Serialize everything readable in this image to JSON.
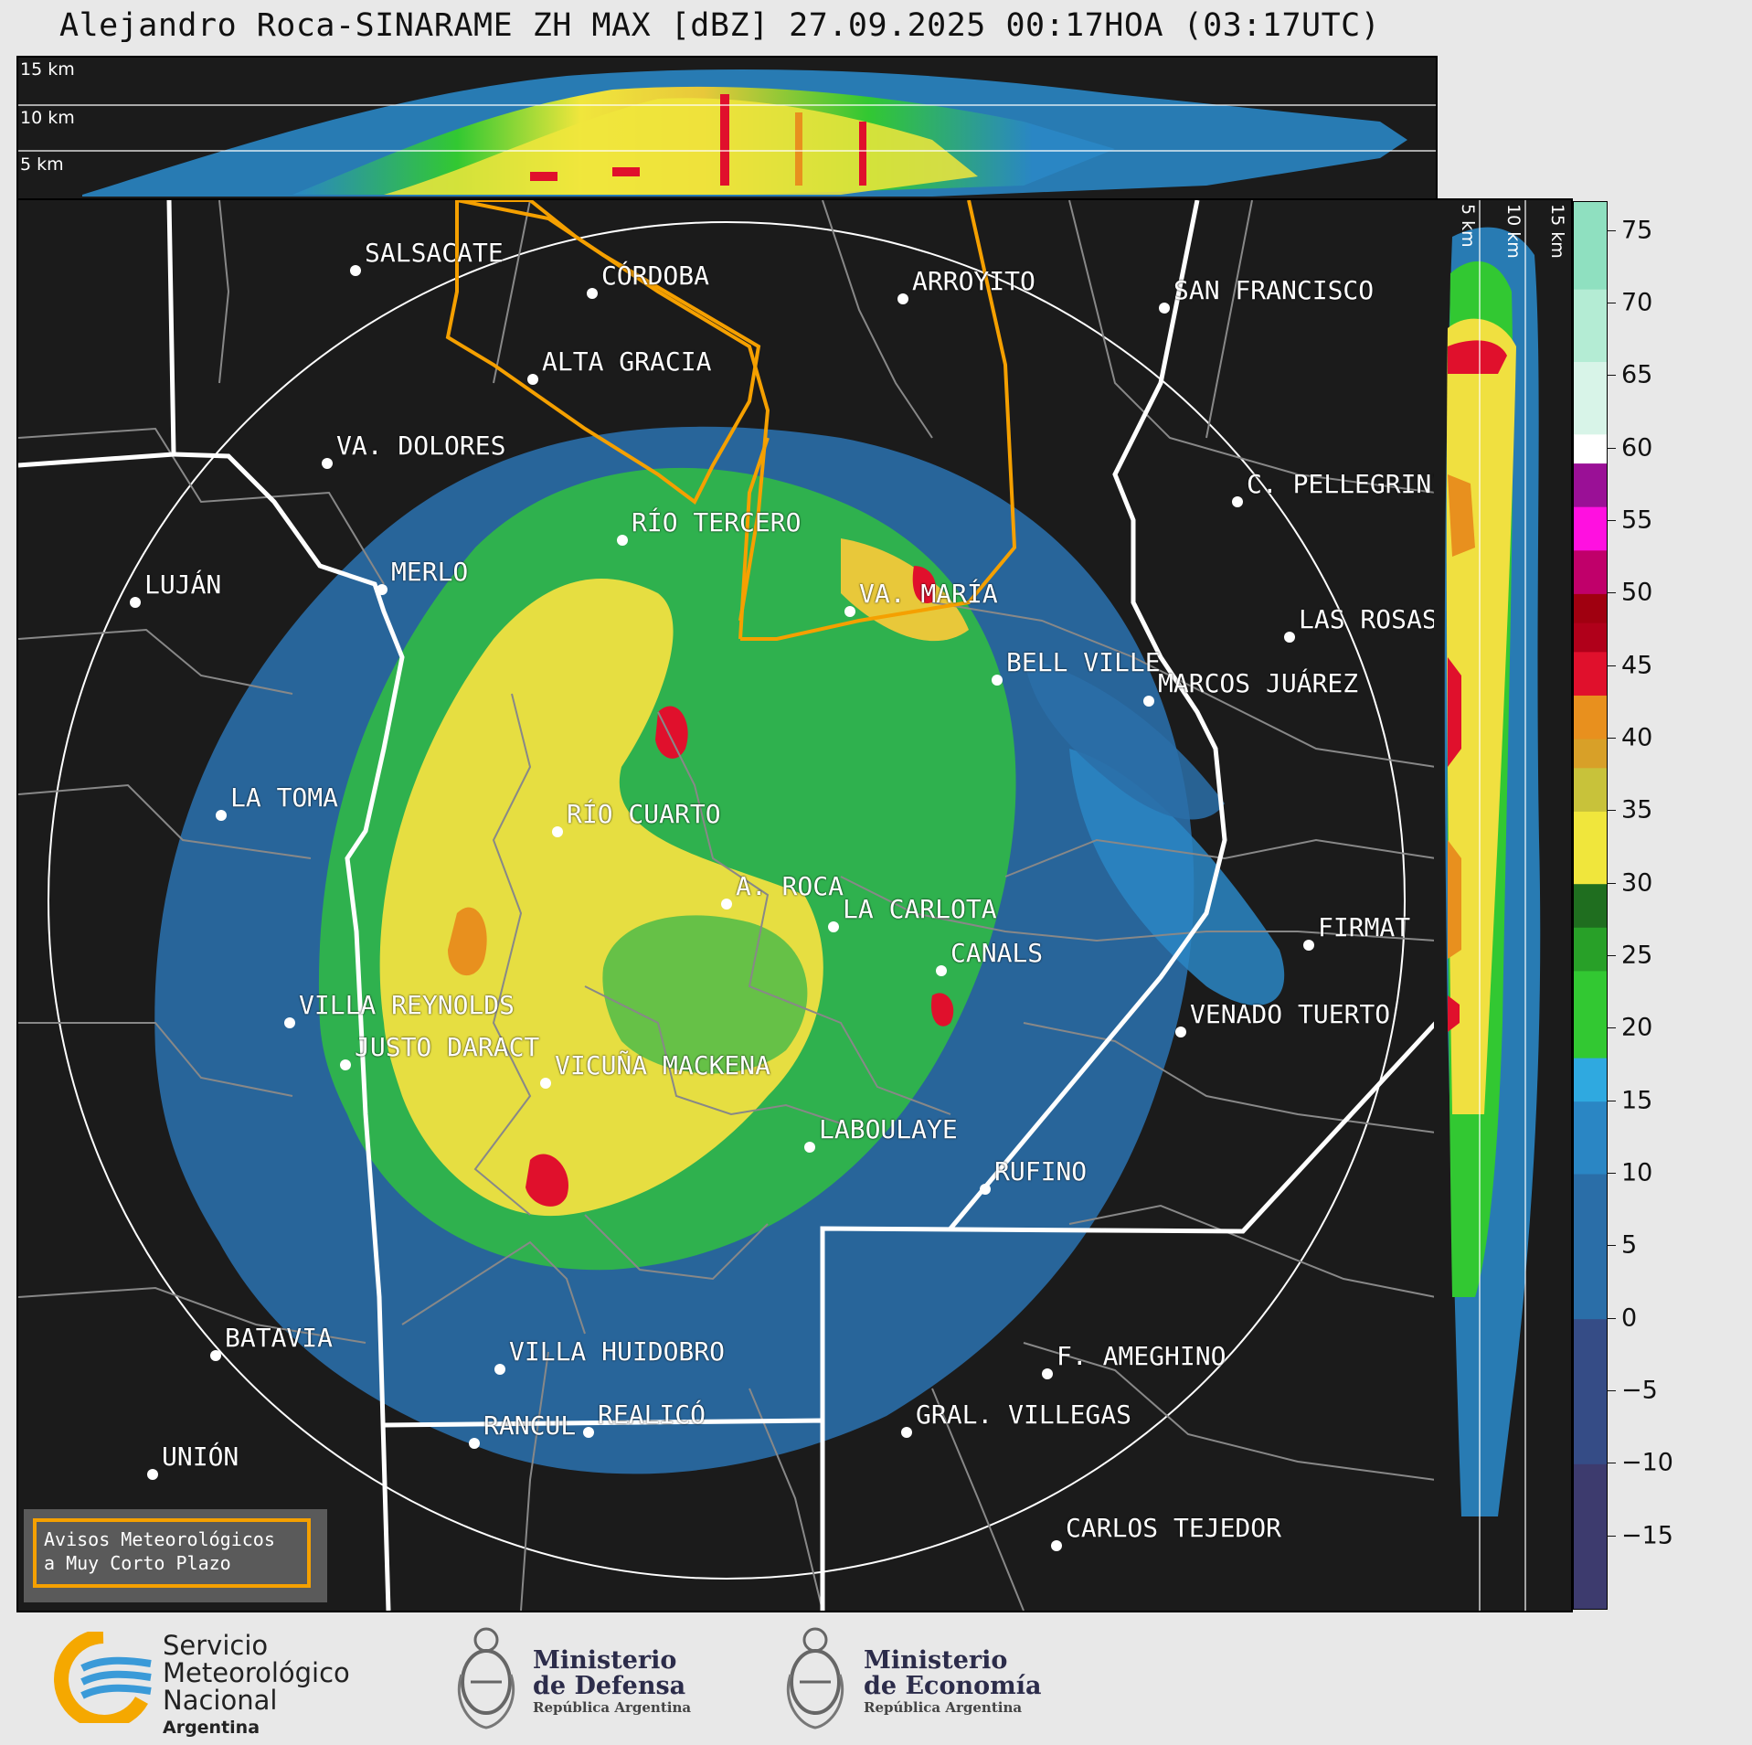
{
  "title": "Alejandro Roca-SINARAME ZH MAX [dBZ] 27.09.2025 00:17HOA (03:17UTC)",
  "top_panel": {
    "altitude_labels": [
      "15 km",
      "10 km",
      "5 km"
    ]
  },
  "side_panel": {
    "altitude_labels": [
      "5 km",
      "10 km",
      "15 km"
    ]
  },
  "colorbar": {
    "unit": "dBZ",
    "ticks": [
      "75",
      "70",
      "65",
      "60",
      "55",
      "50",
      "45",
      "40",
      "35",
      "30",
      "25",
      "20",
      "15",
      "10",
      "5",
      "0",
      "−5",
      "−10",
      "−15"
    ],
    "range": [
      -20,
      77
    ],
    "colors": {
      "low": "#3d3b6e",
      "blue": "#2a86c4",
      "light_blue": "#2fa9e0",
      "green": "#32c832",
      "dark_green": "#1f6e1f",
      "yellow": "#f0e63c",
      "olive": "#c8c23a",
      "orange": "#e8901e",
      "red": "#e0102c",
      "dark_red": "#a00010",
      "magenta": "#ff10e0",
      "purple": "#9a1096",
      "white": "#ffffff",
      "mint": "#8fe0c0"
    }
  },
  "cities": [
    {
      "name": "SALSACATE"
    },
    {
      "name": "CÓRDOBA"
    },
    {
      "name": "ARROYITO"
    },
    {
      "name": "SAN FRANCISCO"
    },
    {
      "name": "ALTA GRACIA"
    },
    {
      "name": "VA. DOLORES"
    },
    {
      "name": "C. PELLEGRINI"
    },
    {
      "name": "RÍO TERCERO"
    },
    {
      "name": "LUJÁN"
    },
    {
      "name": "MERLO"
    },
    {
      "name": "VA. MARÍA"
    },
    {
      "name": "LAS ROSAS"
    },
    {
      "name": "BELL VILLE"
    },
    {
      "name": "MARCOS JUÁREZ"
    },
    {
      "name": "LA TOMA"
    },
    {
      "name": "RÍO CUARTO"
    },
    {
      "name": "A. ROCA"
    },
    {
      "name": "LA CARLOTA"
    },
    {
      "name": "FIRMAT"
    },
    {
      "name": "CANALS"
    },
    {
      "name": "VILLA REYNOLDS"
    },
    {
      "name": "VENADO TUERTO"
    },
    {
      "name": "JUSTO DARACT"
    },
    {
      "name": "VICUÑA MACKENA"
    },
    {
      "name": "LABOULAYE"
    },
    {
      "name": "RUFINO"
    },
    {
      "name": "BATAVIA"
    },
    {
      "name": "VILLA HUIDOBRO"
    },
    {
      "name": "F. AMEGHINO"
    },
    {
      "name": "RANCUL"
    },
    {
      "name": "REALICÓ"
    },
    {
      "name": "GRAL. VILLEGAS"
    },
    {
      "name": "UNIÓN"
    },
    {
      "name": "CARLOS TEJEDOR"
    }
  ],
  "warning": {
    "line1": "Avisos Meteorológicos",
    "line2": "a Muy Corto Plazo"
  },
  "logos": {
    "smn": {
      "line1": "Servicio",
      "line2": "Meteorológico",
      "line3": "Nacional",
      "line4": "Argentina"
    },
    "defensa": {
      "line1": "Ministerio",
      "line2": "de Defensa",
      "line3": "República Argentina"
    },
    "economia": {
      "line1": "Ministerio",
      "line2": "de Economía",
      "line3": "República Argentina"
    }
  }
}
